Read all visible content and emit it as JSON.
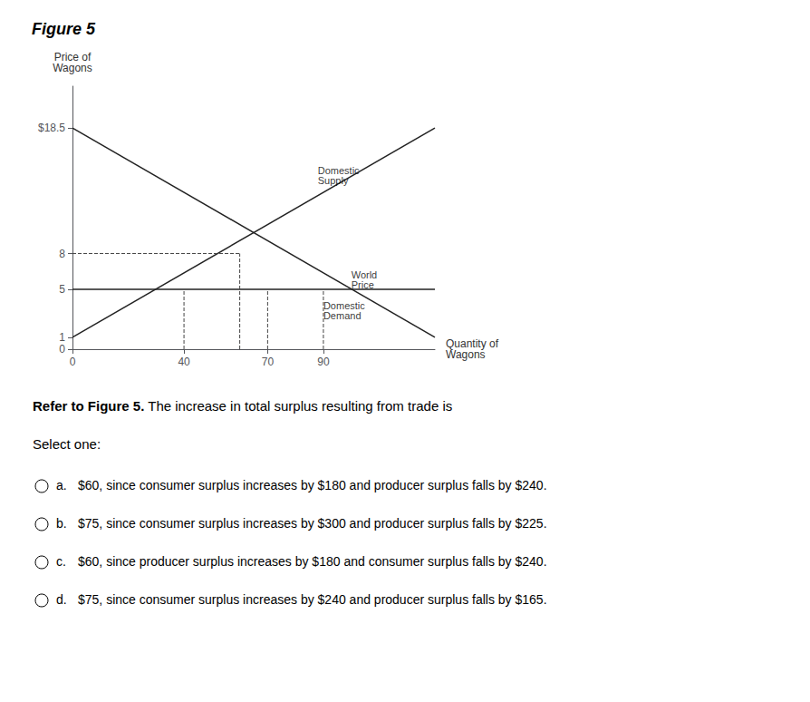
{
  "chart_data": {
    "type": "line",
    "title": "Figure 5",
    "ylabel": "Price of\nWagons",
    "xlabel": "Quantity of\nWagons",
    "xlim": [
      0,
      130
    ],
    "ylim": [
      0,
      22
    ],
    "xticks": [
      0,
      40,
      70,
      90
    ],
    "yticks": [
      0,
      1,
      5,
      8,
      {
        "value": 18.5,
        "label": "$18.5"
      }
    ],
    "grid": false,
    "series": [
      {
        "x": [
          0,
          130
        ],
        "values": [
          1,
          18.5
        ],
        "color": "#222222",
        "line_style": "solid"
      },
      {
        "x": [
          0,
          130
        ],
        "values": [
          18.5,
          1
        ],
        "color": "#222222",
        "line_style": "solid"
      },
      {
        "x": [
          0,
          130
        ],
        "values": [
          5,
          5
        ],
        "color": "#222222",
        "line_style": "solid"
      },
      {
        "x": [
          0,
          60
        ],
        "values": [
          8,
          8
        ],
        "color": "#444444",
        "line_style": "dashed"
      },
      {
        "x": [
          60,
          60
        ],
        "values": [
          0,
          8
        ],
        "color": "#444444",
        "line_style": "dashed"
      },
      {
        "x": [
          40,
          40
        ],
        "values": [
          0,
          5
        ],
        "color": "#444444",
        "line_style": "dashed"
      },
      {
        "x": [
          70,
          70
        ],
        "values": [
          0,
          5
        ],
        "color": "#444444",
        "line_style": "dashed"
      },
      {
        "x": [
          90,
          90
        ],
        "values": [
          0,
          5
        ],
        "color": "#444444",
        "line_style": "dashed"
      }
    ],
    "annotations": [
      {
        "text": "Domestic\nSupply",
        "x": 88,
        "y": 14.5
      },
      {
        "text": "Domestic\nDemand",
        "x": 90,
        "y": 3.2
      },
      {
        "text": "World\nPrice",
        "x": 100,
        "y": 5.8
      }
    ],
    "question_bold": "Refer to Figure 5.",
    "question_rest": " The increase in total surplus resulting from trade is",
    "select_one": "Select one:",
    "options": [
      {
        "letter": "a.",
        "text": "$60, since consumer surplus increases by $180 and producer surplus falls by $240."
      },
      {
        "letter": "b.",
        "text": "$75, since consumer surplus increases by $300 and producer surplus falls by $225."
      },
      {
        "letter": "c.",
        "text": "$60, since producer surplus increases by $180 and consumer surplus falls by $240."
      },
      {
        "letter": "d.",
        "text": "$75, since consumer surplus increases by $240 and producer surplus falls by $165."
      }
    ]
  }
}
